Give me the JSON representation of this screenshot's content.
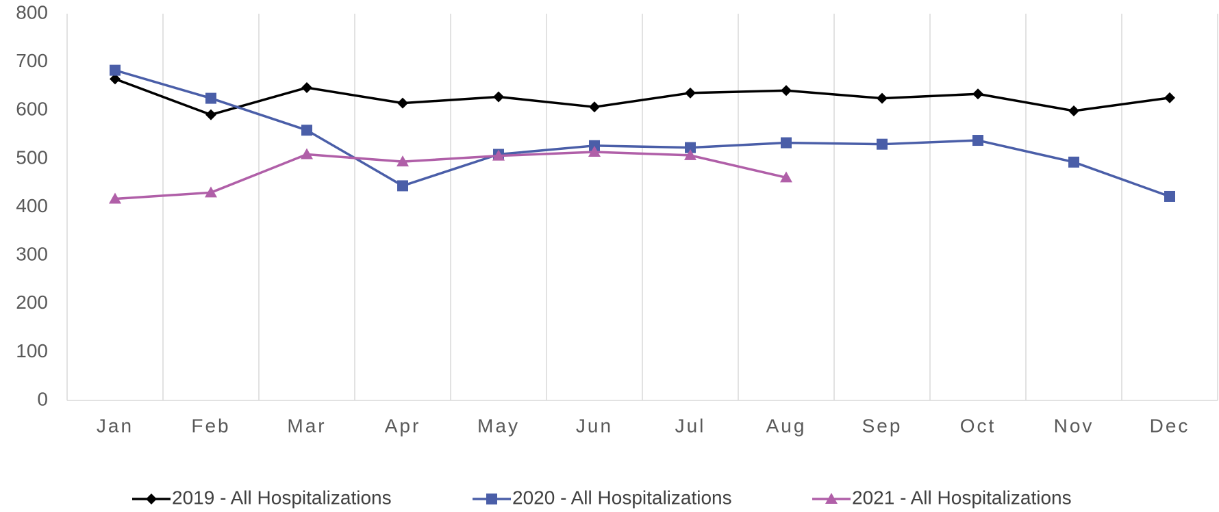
{
  "chart_data": {
    "type": "line",
    "categories": [
      "Jan",
      "Feb",
      "Mar",
      "Apr",
      "May",
      "Jun",
      "Jul",
      "Aug",
      "Sep",
      "Oct",
      "Nov",
      "Dec"
    ],
    "series": [
      {
        "name": "2019 - All Hospitalizations",
        "color": "#000000",
        "marker": "diamond",
        "values": [
          665,
          591,
          647,
          615,
          628,
          607,
          636,
          641,
          625,
          634,
          599,
          626
        ]
      },
      {
        "name": "2020 - All Hospitalizations",
        "color": "#4a5ea8",
        "marker": "square",
        "values": [
          683,
          625,
          559,
          444,
          509,
          527,
          523,
          533,
          530,
          538,
          493,
          422
        ]
      },
      {
        "name": "2021 - All Hospitalizations",
        "color": "#b05fa8",
        "marker": "triangle",
        "values": [
          417,
          430,
          509,
          494,
          506,
          514,
          507,
          461,
          null,
          null,
          null,
          null
        ]
      }
    ],
    "ylim": [
      0,
      800
    ],
    "yticks": [
      0,
      100,
      200,
      300,
      400,
      500,
      600,
      700,
      800
    ],
    "legend": "bottom"
  }
}
